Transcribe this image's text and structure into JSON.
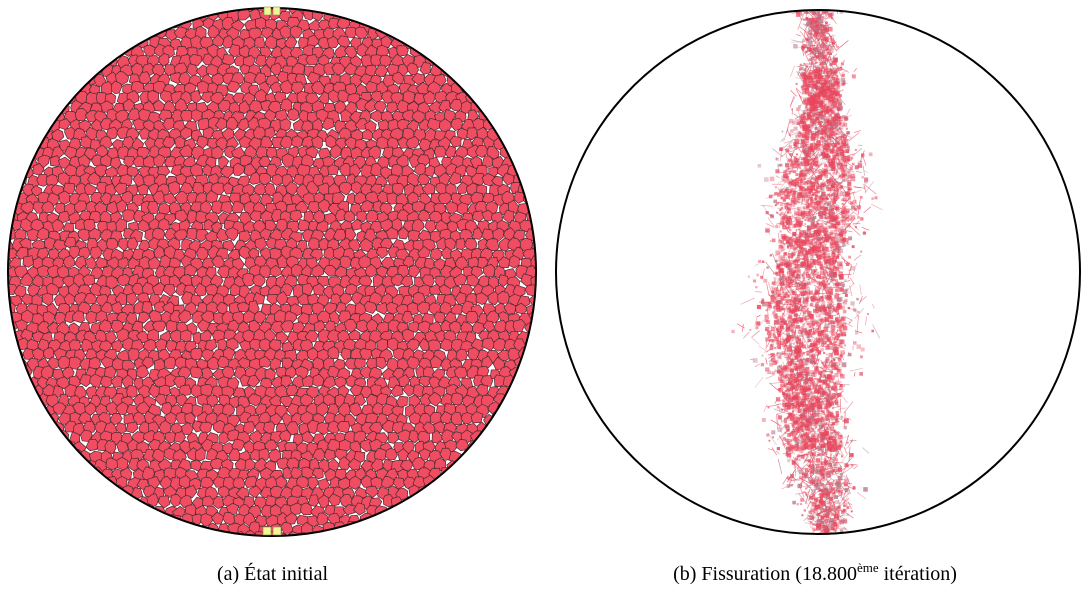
{
  "figures": [
    {
      "id": "a",
      "caption": {
        "prefix": "(a) État initial",
        "superscript": "",
        "suffix": ""
      },
      "cell_fill": "#f04d62",
      "cell_stroke": "#4a2a32",
      "contact_pad_fill": "#f2f59a"
    },
    {
      "id": "b",
      "caption": {
        "prefix": "(b) Fissuration (18.800",
        "superscript": "ème",
        "suffix": " itération)"
      },
      "fragment_fill": "#e8475d",
      "fragment_shade": "#b87a8a"
    }
  ],
  "outline_color": "#000000"
}
